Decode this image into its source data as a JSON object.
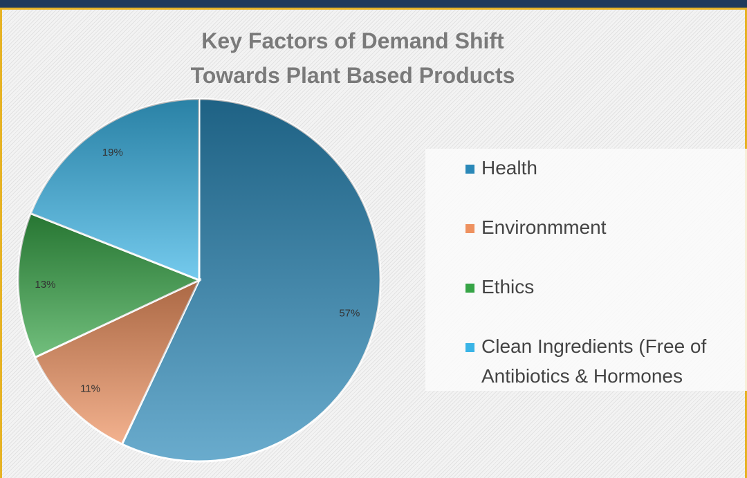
{
  "chart_data": {
    "type": "pie",
    "title": "Key Factors of Demand Shift",
    "subtitle": "Towards Plant Based Products",
    "categories": [
      "Health",
      "Environmment",
      "Ethics",
      "Clean Ingredients (Free of Antibiotics & Hormones"
    ],
    "values": [
      57,
      11,
      13,
      19
    ],
    "value_labels": [
      "57%",
      "11%",
      "13%",
      "19%"
    ],
    "colors": [
      "#2a88b8",
      "#ee915f",
      "#36a446",
      "#3ab4e6"
    ],
    "legend": "right"
  }
}
